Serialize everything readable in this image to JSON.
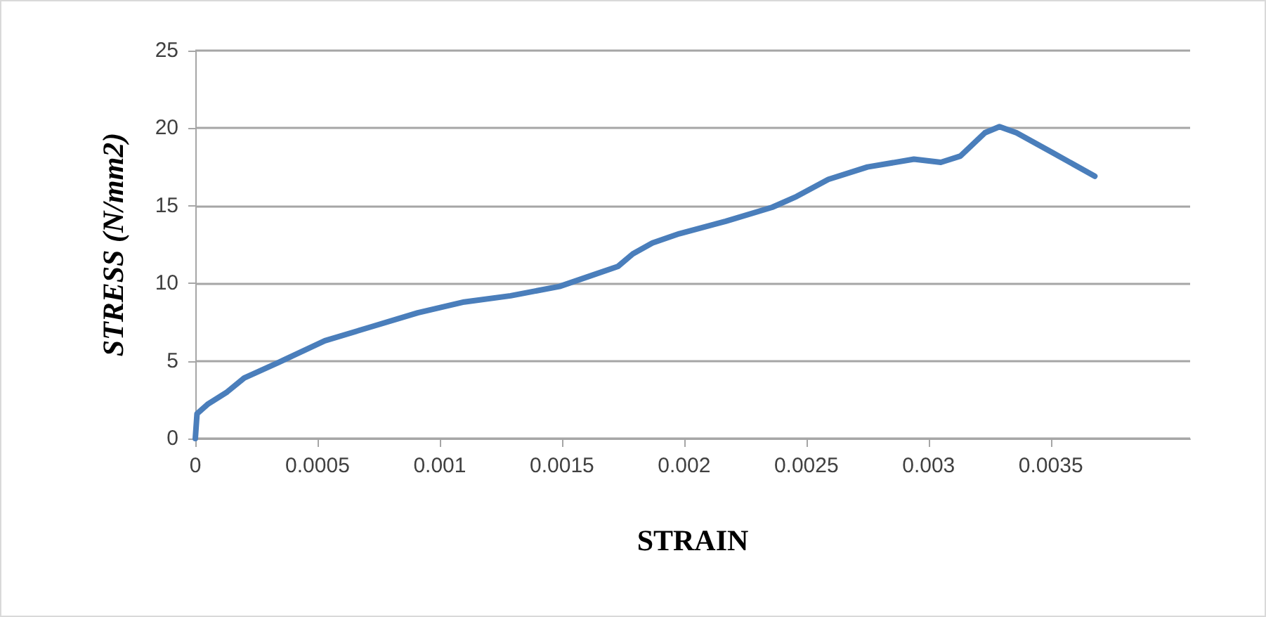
{
  "chart_data": {
    "type": "line",
    "xlabel": "STRAIN",
    "ylabel": "STRESS (N/mm2)",
    "xlim": [
      0,
      0.00407
    ],
    "xticks": [
      0,
      0.0005,
      0.001,
      0.0015,
      0.002,
      0.0025,
      0.003,
      0.0035
    ],
    "ylim": [
      0,
      25
    ],
    "yticks": [
      0,
      5,
      10,
      15,
      20,
      25
    ],
    "grid": "y",
    "marker": "none",
    "line_style": "solid",
    "series": [
      {
        "color": "#4a7ebb",
        "x": [
          0,
          7e-06,
          5e-05,
          0.00013,
          0.0002,
          0.00034,
          0.00053,
          0.00072,
          0.00091,
          0.0011,
          0.00129,
          0.00149,
          0.00162,
          0.00173,
          0.00179,
          0.00187,
          0.00198,
          0.00217,
          0.00236,
          0.00246,
          0.00259,
          0.00275,
          0.00294,
          0.00305,
          0.00313,
          0.00323,
          0.00329,
          0.00336,
          0.00351,
          0.00368
        ],
        "values": [
          0,
          1.6,
          2.2,
          3.0,
          3.9,
          4.9,
          6.3,
          7.2,
          8.1,
          8.8,
          9.2,
          9.8,
          10.5,
          11.1,
          11.9,
          12.6,
          13.2,
          14.0,
          14.9,
          15.6,
          16.7,
          17.5,
          18.0,
          17.8,
          18.2,
          19.7,
          20.1,
          19.7,
          18.4,
          16.9
        ]
      }
    ]
  }
}
